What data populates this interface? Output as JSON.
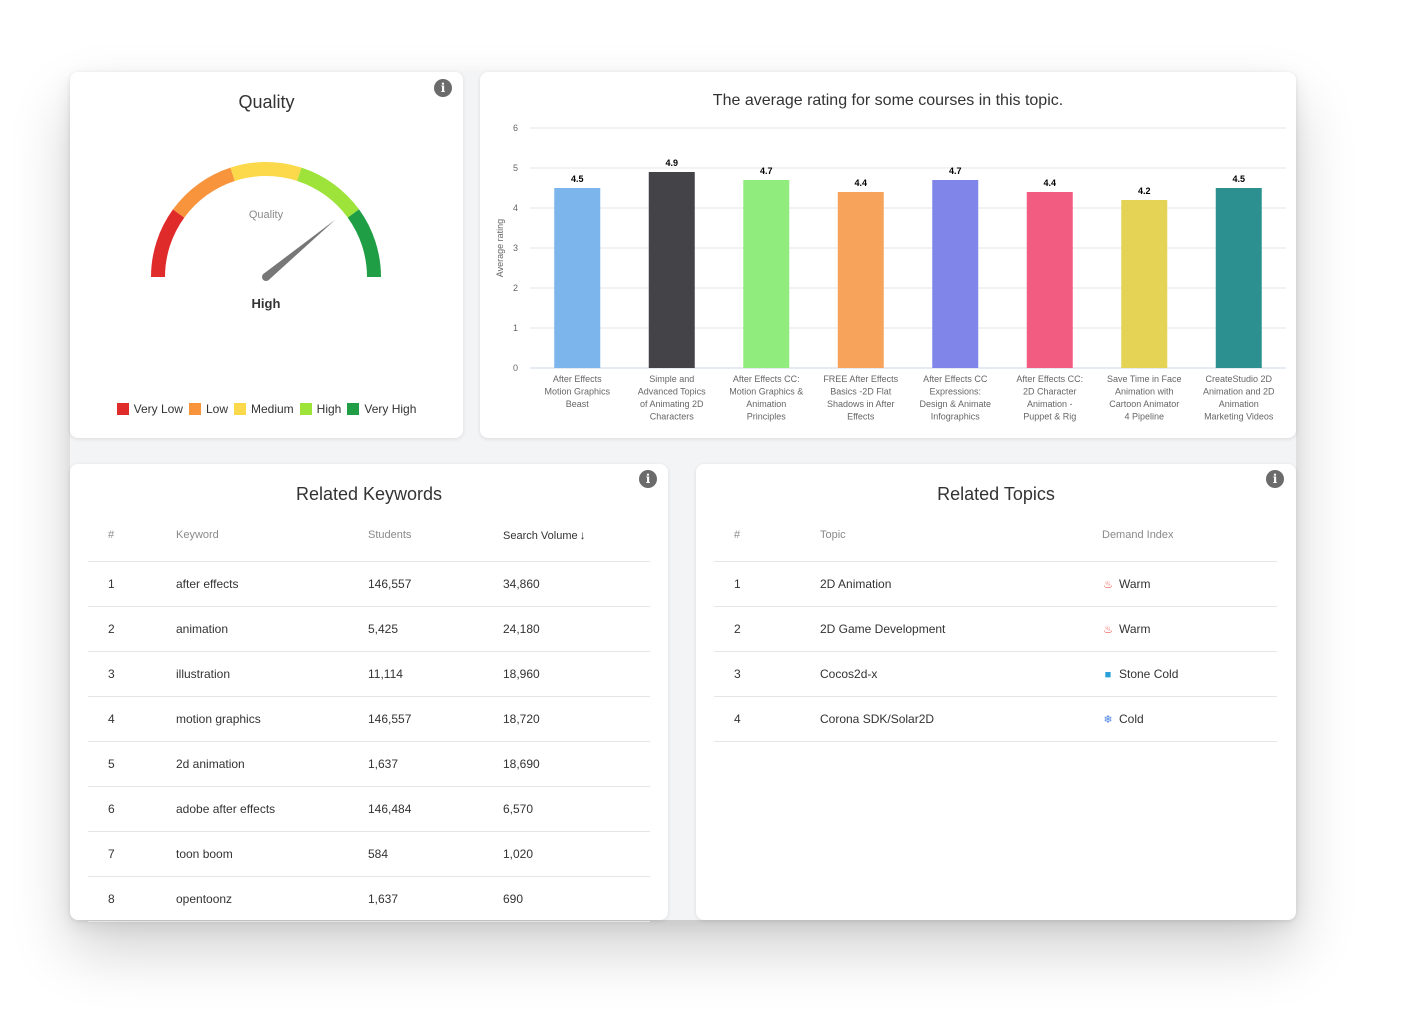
{
  "quality": {
    "title": "Quality",
    "gauge_label": "Quality",
    "value_label": "High",
    "value_fraction": 0.78,
    "legend": [
      {
        "label": "Very Low",
        "color": "#e02b2b"
      },
      {
        "label": "Low",
        "color": "#f7943c"
      },
      {
        "label": "Medium",
        "color": "#fbd94a"
      },
      {
        "label": "High",
        "color": "#9ee33a"
      },
      {
        "label": "Very High",
        "color": "#1f9e45"
      }
    ]
  },
  "chart_data": {
    "type": "bar",
    "title": "The average rating for some courses in this topic.",
    "ylabel": "Average rating",
    "xlabel": "",
    "ylim": [
      0,
      6
    ],
    "yticks": [
      0,
      1,
      2,
      3,
      4,
      5,
      6
    ],
    "grid": true,
    "categories": [
      "After Effects Motion Graphics Beast",
      "Simple and Advanced Topics of Animating 2D Characters",
      "After Effects CC: Motion Graphics & Animation Principles",
      "FREE After Effects Basics -2D Flat Shadows in After Effects",
      "After Effects CC Expressions: Design & Animate Infographics",
      "After Effects CC: 2D Character Animation - Puppet & Rig",
      "Save Time in Face Animation with Cartoon Animator 4 Pipeline",
      "CreateStudio 2D Animation and 2D Animation Marketing Videos"
    ],
    "category_lines": [
      [
        "After Effects",
        "Motion Graphics",
        "Beast"
      ],
      [
        "Simple and",
        "Advanced Topics",
        "of Animating 2D",
        "Characters"
      ],
      [
        "After Effects CC:",
        "Motion Graphics &",
        "Animation",
        "Principles"
      ],
      [
        "FREE After Effects",
        "Basics -2D Flat",
        "Shadows in After",
        "Effects"
      ],
      [
        "After Effects CC",
        "Expressions:",
        "Design & Animate",
        "Infographics"
      ],
      [
        "After Effects CC:",
        "2D Character",
        "Animation -",
        "Puppet & Rig"
      ],
      [
        "Save Time in Face",
        "Animation with",
        "Cartoon Animator",
        "4 Pipeline"
      ],
      [
        "CreateStudio 2D",
        "Animation and 2D",
        "Animation",
        "Marketing Videos"
      ]
    ],
    "values": [
      4.5,
      4.9,
      4.7,
      4.4,
      4.7,
      4.4,
      4.2,
      4.5
    ],
    "colors": [
      "#7cb5ec",
      "#434348",
      "#90ed7d",
      "#f7a35c",
      "#8085e9",
      "#f15c80",
      "#e4d354",
      "#2b908f"
    ]
  },
  "keywords": {
    "title": "Related Keywords",
    "headers": {
      "num": "#",
      "keyword": "Keyword",
      "students": "Students",
      "volume": "Search Volume"
    },
    "rows": [
      {
        "num": "1",
        "keyword": "after effects",
        "students": "146,557",
        "volume": "34,860"
      },
      {
        "num": "2",
        "keyword": "animation",
        "students": "5,425",
        "volume": "24,180"
      },
      {
        "num": "3",
        "keyword": "illustration",
        "students": "11,114",
        "volume": "18,960"
      },
      {
        "num": "4",
        "keyword": "motion graphics",
        "students": "146,557",
        "volume": "18,720"
      },
      {
        "num": "5",
        "keyword": "2d animation",
        "students": "1,637",
        "volume": "18,690"
      },
      {
        "num": "6",
        "keyword": "adobe after effects",
        "students": "146,484",
        "volume": "6,570"
      },
      {
        "num": "7",
        "keyword": "toon boom",
        "students": "584",
        "volume": "1,020"
      },
      {
        "num": "8",
        "keyword": "opentoonz",
        "students": "1,637",
        "volume": "690"
      }
    ]
  },
  "topics": {
    "title": "Related Topics",
    "headers": {
      "num": "#",
      "topic": "Topic",
      "demand": "Demand Index"
    },
    "rows": [
      {
        "num": "1",
        "topic": "2D Animation",
        "demand": "Warm",
        "icon": "fire-icon",
        "glyph": "♨",
        "color": "#e8463a"
      },
      {
        "num": "2",
        "topic": "2D Game Development",
        "demand": "Warm",
        "icon": "fire-icon",
        "glyph": "♨",
        "color": "#e8463a"
      },
      {
        "num": "3",
        "topic": "Cocos2d-x",
        "demand": "Stone Cold",
        "icon": "ice-cube-icon",
        "glyph": "■",
        "color": "#2a9fd8"
      },
      {
        "num": "4",
        "topic": "Corona SDK/Solar2D",
        "demand": "Cold",
        "icon": "snowflake-icon",
        "glyph": "❄",
        "color": "#4a7fe0"
      }
    ]
  }
}
